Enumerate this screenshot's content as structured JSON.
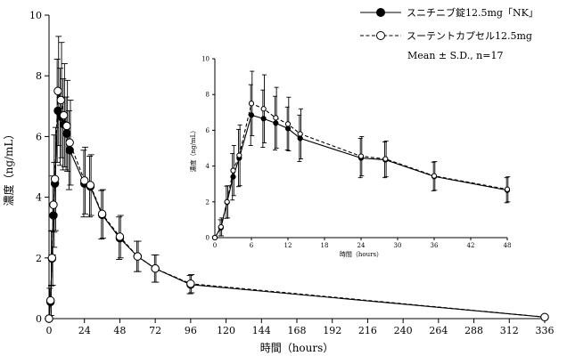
{
  "chart_data": [
    {
      "type": "line",
      "xlabel": "時間（hours）",
      "ylabel": "濃度（ng/mL）",
      "xlim": [
        0,
        336
      ],
      "ylim": [
        0,
        10
      ],
      "xticks": [
        0,
        24,
        48,
        72,
        96,
        120,
        144,
        168,
        192,
        216,
        240,
        264,
        288,
        312,
        336
      ],
      "yticks": [
        0,
        2,
        4,
        6,
        8,
        10
      ],
      "legend": {
        "position": "top-right",
        "note": "Mean ± S.D., n=17"
      },
      "series": [
        {
          "name": "スニチニブ錠12.5mg「NK」",
          "marker": "filled-circle",
          "line": "solid",
          "color": "#000000",
          "x": [
            0,
            1,
            2,
            3,
            4,
            6,
            8,
            10,
            12,
            14,
            24,
            28,
            36,
            48,
            60,
            72,
            96,
            336
          ],
          "y": [
            0,
            0.55,
            1.98,
            3.4,
            4.45,
            6.85,
            6.65,
            6.4,
            6.1,
            5.55,
            4.45,
            4.35,
            3.42,
            2.65,
            2.05,
            1.65,
            1.12,
            0.05
          ],
          "sd": [
            0,
            0.45,
            0.9,
            1.3,
            1.6,
            1.7,
            1.6,
            1.5,
            1.2,
            1.3,
            1.1,
            1.0,
            0.8,
            0.7,
            0.5,
            0.45,
            0.3,
            0.05
          ]
        },
        {
          "name": "スーテントカプセル12.5mg",
          "marker": "open-circle",
          "line": "dashed",
          "color": "#000000",
          "x": [
            0,
            1,
            2,
            3,
            4,
            6,
            8,
            10,
            12,
            14,
            24,
            28,
            36,
            48,
            60,
            72,
            96,
            336
          ],
          "y": [
            0,
            0.6,
            2.0,
            3.75,
            4.6,
            7.5,
            7.2,
            6.7,
            6.35,
            5.8,
            4.55,
            4.4,
            3.45,
            2.7,
            2.05,
            1.65,
            1.15,
            0.05
          ],
          "sd": [
            0,
            0.5,
            0.9,
            1.4,
            1.7,
            1.8,
            1.9,
            1.7,
            1.5,
            1.4,
            1.1,
            1.0,
            0.8,
            0.7,
            0.5,
            0.45,
            0.3,
            0.05
          ]
        }
      ]
    },
    {
      "type": "line",
      "xlabel": "時間（hours）",
      "ylabel": "濃度（ng/mL）",
      "xlim": [
        0,
        48
      ],
      "ylim": [
        0,
        10
      ],
      "xticks": [
        0,
        6,
        12,
        18,
        24,
        30,
        36,
        42,
        48
      ],
      "yticks": [
        0,
        2,
        4,
        6,
        8,
        10
      ],
      "series": [
        {
          "name": "スニチニブ錠12.5mg「NK」",
          "marker": "filled-circle",
          "line": "solid",
          "x": [
            0,
            1,
            2,
            3,
            4,
            6,
            8,
            10,
            12,
            14,
            24,
            28,
            36,
            48
          ],
          "y": [
            0,
            0.55,
            1.98,
            3.4,
            4.45,
            6.85,
            6.65,
            6.4,
            6.1,
            5.55,
            4.45,
            4.35,
            3.42,
            2.65
          ],
          "sd": [
            0,
            0.45,
            0.9,
            1.3,
            1.6,
            1.7,
            1.6,
            1.5,
            1.2,
            1.3,
            1.1,
            1.0,
            0.8,
            0.7
          ]
        },
        {
          "name": "スーテントカプセル12.5mg",
          "marker": "open-circle",
          "line": "dashed",
          "x": [
            0,
            1,
            2,
            3,
            4,
            6,
            8,
            10,
            12,
            14,
            24,
            28,
            36,
            48
          ],
          "y": [
            0,
            0.6,
            2.0,
            3.75,
            4.6,
            7.5,
            7.2,
            6.7,
            6.35,
            5.8,
            4.55,
            4.4,
            3.45,
            2.7
          ],
          "sd": [
            0,
            0.5,
            0.9,
            1.4,
            1.7,
            1.8,
            1.9,
            1.7,
            1.5,
            1.4,
            1.1,
            1.0,
            0.8,
            0.7
          ]
        }
      ]
    }
  ]
}
